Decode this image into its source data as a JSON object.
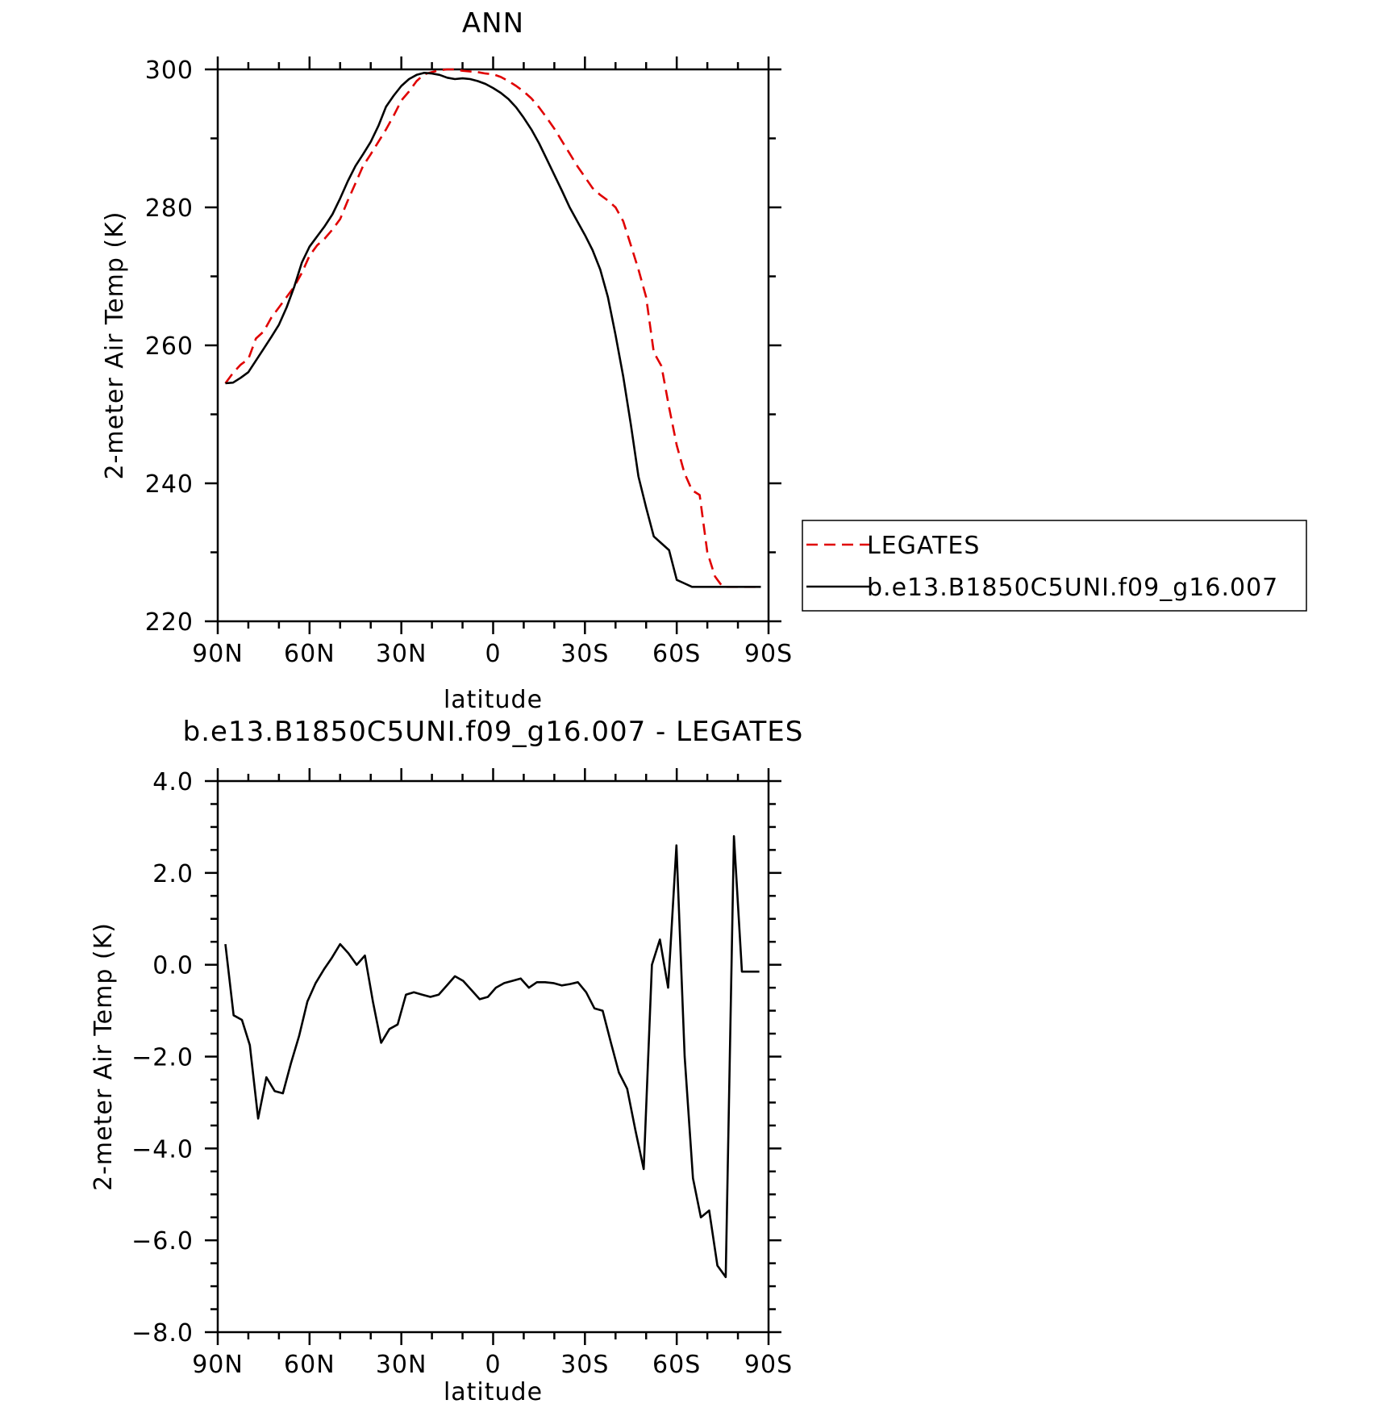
{
  "chart_data": [
    {
      "type": "line",
      "title": "ANN",
      "xlabel": "latitude",
      "ylabel": "2-meter Air Temp (K)",
      "xlim": [
        90,
        -90
      ],
      "ylim": [
        220,
        300
      ],
      "x_ticks": [
        {
          "value": 90,
          "label": "90N"
        },
        {
          "value": 60,
          "label": "60N"
        },
        {
          "value": 30,
          "label": "30N"
        },
        {
          "value": 0,
          "label": "0"
        },
        {
          "value": -30,
          "label": "30S"
        },
        {
          "value": -60,
          "label": "60S"
        },
        {
          "value": -90,
          "label": "90S"
        }
      ],
      "y_ticks": [
        {
          "value": 300,
          "label": "300"
        },
        {
          "value": 280,
          "label": "280"
        },
        {
          "value": 260,
          "label": "260"
        },
        {
          "value": 240,
          "label": "240"
        },
        {
          "value": 220,
          "label": "220"
        }
      ],
      "grid": false,
      "legend": {
        "placement": "right"
      },
      "series": [
        {
          "name": "LEGATES",
          "color": "#e00000",
          "dash": "dashed",
          "x": [
            87.5,
            85,
            82.5,
            80,
            77.5,
            75,
            72.5,
            70,
            67.5,
            65,
            62.5,
            60,
            57.5,
            55,
            52.5,
            50,
            47.5,
            45,
            42.5,
            40,
            37.5,
            35,
            32.5,
            30,
            27.5,
            25,
            22.5,
            20,
            17.5,
            15,
            12.5,
            10,
            7.5,
            5,
            2.5,
            0,
            -2.5,
            -5,
            -7.5,
            -10,
            -12.5,
            -15,
            -17.5,
            -20,
            -22.5,
            -25,
            -27.5,
            -30,
            -32.5,
            -35,
            -37.5,
            -40,
            -42.5,
            -45,
            -47.5,
            -50,
            -52.5,
            -55,
            -57.5,
            -60,
            -62.5,
            -65,
            -67.5,
            -70,
            -72.5,
            -75,
            -77.5,
            -80,
            -82.5,
            -85,
            -87.5
          ],
          "values": [
            254.5,
            256.0,
            257.2,
            258.0,
            261.0,
            262.0,
            264.0,
            265.5,
            267.0,
            268.5,
            270.5,
            273.0,
            274.5,
            275.5,
            276.8,
            278.3,
            281.0,
            283.5,
            286.0,
            287.7,
            289.5,
            291.3,
            293.3,
            295.5,
            296.8,
            298.3,
            299.3,
            299.6,
            299.9,
            300.0,
            300.0,
            299.8,
            299.7,
            299.6,
            299.4,
            299.3,
            298.9,
            298.3,
            297.6,
            296.8,
            295.8,
            294.5,
            293.0,
            291.4,
            289.6,
            287.8,
            286.0,
            284.4,
            282.8,
            281.8,
            281.0,
            280.0,
            278.0,
            274.5,
            271.0,
            267.0,
            259.0,
            257.0,
            251.0,
            245.5,
            241.5,
            239.0,
            238.3,
            230.0,
            226.5,
            225.0,
            225.0,
            225.0,
            225.0,
            225.0,
            225.0
          ]
        },
        {
          "name": "b.e13.B1850C5UNI.f09_g16.007",
          "color": "#000000",
          "dash": "solid",
          "x": [
            87.5,
            85,
            82.5,
            80,
            77.5,
            75,
            72.5,
            70,
            67.5,
            65,
            62.5,
            60,
            57.5,
            55,
            52.5,
            50,
            47.5,
            45,
            42.5,
            40,
            37.5,
            35,
            32.5,
            30,
            27.5,
            25,
            22.5,
            20,
            17.5,
            15,
            12.5,
            10,
            7.5,
            5,
            2.5,
            0,
            -2.5,
            -5,
            -7.5,
            -10,
            -12.5,
            -15,
            -17.5,
            -20,
            -22.5,
            -25,
            -27.5,
            -30,
            -32.5,
            -35,
            -37.5,
            -40,
            -42.5,
            -45,
            -47.5,
            -50,
            -52.5,
            -55,
            -57.5,
            -60,
            -62.5,
            -65,
            -67.5,
            -70,
            -72.5,
            -75,
            -77.5,
            -80,
            -82.5,
            -85,
            -87.5
          ],
          "values": [
            254.5,
            254.6,
            255.3,
            256.1,
            257.8,
            259.5,
            261.2,
            263.0,
            265.5,
            268.5,
            272.0,
            274.3,
            275.8,
            277.3,
            279.0,
            281.3,
            283.8,
            286.0,
            287.7,
            289.5,
            291.8,
            294.6,
            296.2,
            297.6,
            298.6,
            299.2,
            299.5,
            299.4,
            299.2,
            298.8,
            298.6,
            298.7,
            298.6,
            298.3,
            297.9,
            297.3,
            296.6,
            295.7,
            294.5,
            293.0,
            291.3,
            289.3,
            287.0,
            284.7,
            282.4,
            280.0,
            278.0,
            276.0,
            273.8,
            271.0,
            267.0,
            261.5,
            255.5,
            248.5,
            241.0,
            236.5,
            232.3,
            231.3,
            230.3,
            226.0,
            225.5,
            225.0,
            225.0,
            225.0,
            225.0,
            225.0,
            225.0,
            225.0,
            225.0,
            225.0,
            225.0
          ]
        }
      ]
    },
    {
      "type": "line",
      "title": "b.e13.B1850C5UNI.f09_g16.007 - LEGATES",
      "xlabel": "latitude",
      "ylabel": "2-meter Air Temp (K)",
      "xlim": [
        90,
        -90
      ],
      "ylim": [
        -8,
        4
      ],
      "x_ticks": [
        {
          "value": 90,
          "label": "90N"
        },
        {
          "value": 60,
          "label": "60N"
        },
        {
          "value": 30,
          "label": "30N"
        },
        {
          "value": 0,
          "label": "0"
        },
        {
          "value": -30,
          "label": "30S"
        },
        {
          "value": -60,
          "label": "60S"
        },
        {
          "value": -90,
          "label": "90S"
        }
      ],
      "y_ticks": [
        {
          "value": 4,
          "label": "4.0"
        },
        {
          "value": 2,
          "label": "2.0"
        },
        {
          "value": 0,
          "label": "0.0"
        },
        {
          "value": -2,
          "label": "−2.0"
        },
        {
          "value": -4,
          "label": "−4.0"
        },
        {
          "value": -6,
          "label": "−6.0"
        },
        {
          "value": -8,
          "label": "−8.0"
        }
      ],
      "grid": false,
      "series": [
        {
          "color": "#000000",
          "dash": "solid",
          "x": [
            87.5,
            84.8,
            82.1,
            79.5,
            76.8,
            74.1,
            71.4,
            68.7,
            66.1,
            63.4,
            60.7,
            58.0,
            55.3,
            52.7,
            50.0,
            47.3,
            44.6,
            41.9,
            39.3,
            36.6,
            33.9,
            31.2,
            28.5,
            25.9,
            23.2,
            20.5,
            17.8,
            15.1,
            12.5,
            9.8,
            7.1,
            4.4,
            1.7,
            -0.9,
            -3.6,
            -6.3,
            -9.0,
            -11.7,
            -14.3,
            -17.0,
            -19.7,
            -22.4,
            -25.1,
            -27.7,
            -30.4,
            -33.1,
            -35.8,
            -38.5,
            -41.1,
            -43.8,
            -46.5,
            -49.2,
            -51.9,
            -54.5,
            -57.2,
            -59.9,
            -62.6,
            -65.3,
            -67.9,
            -70.6,
            -73.3,
            -76.0,
            -78.7,
            -81.3,
            -84.0,
            -87.0
          ],
          "values": [
            0.45,
            -1.1,
            -1.2,
            -1.75,
            -3.35,
            -2.45,
            -2.75,
            -2.8,
            -2.15,
            -1.55,
            -0.8,
            -0.4,
            -0.1,
            0.15,
            0.45,
            0.25,
            0.0,
            0.2,
            -0.8,
            -1.7,
            -1.4,
            -1.3,
            -0.65,
            -0.6,
            -0.65,
            -0.7,
            -0.65,
            -0.45,
            -0.25,
            -0.35,
            -0.55,
            -0.75,
            -0.7,
            -0.5,
            -0.4,
            -0.35,
            -0.3,
            -0.5,
            -0.38,
            -0.38,
            -0.4,
            -0.45,
            -0.42,
            -0.38,
            -0.6,
            -0.95,
            -1.0,
            -1.7,
            -2.35,
            -2.7,
            -3.6,
            -4.45,
            0.0,
            0.55,
            -0.5,
            2.6,
            -2.0,
            -4.65,
            -5.5,
            -5.35,
            -6.55,
            -6.8,
            2.8,
            -0.15,
            -0.15,
            -0.15
          ]
        }
      ]
    }
  ]
}
